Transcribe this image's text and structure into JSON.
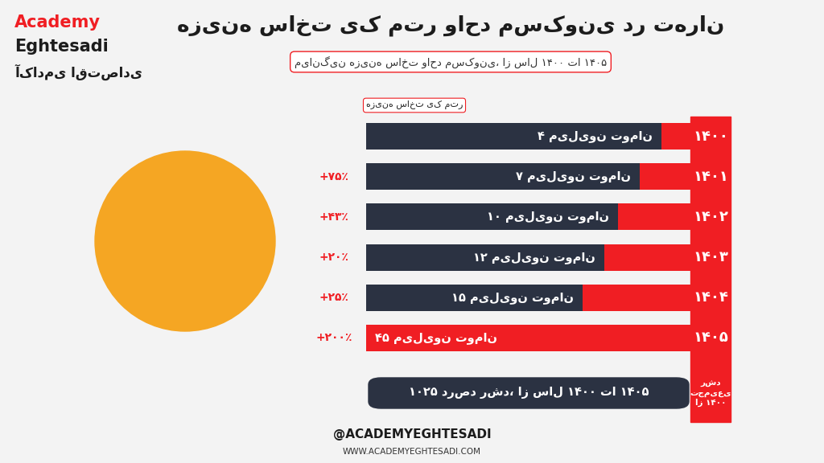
{
  "header": {
    "brand_latin": [
      "Academy",
      "Eghtesadi"
    ],
    "brand_persian": "آکادمی اقتصادی"
  },
  "chart_data": {
    "type": "bar",
    "orientation": "horizontal",
    "title": "هزینه ساخت یک متر واحد مسکونی در تهران",
    "subtitle": "میانگین هزینه ساخت واحد مسکونی، از سال ۱۴۰۰ تا ۱۴۰۵",
    "value_header": "هزینه ساخت یک متر",
    "categories": [
      "۱۴۰۰",
      "۱۴۰۱",
      "۱۴۰۲",
      "۱۴۰۳",
      "۱۴۰۴",
      "۱۴۰۵"
    ],
    "values": [
      4,
      7,
      10,
      12,
      15,
      45
    ],
    "value_labels": [
      "۴ میلیون تومان",
      "۷ میلیون تومان",
      "۱۰ میلیون تومان",
      "۱۲ میلیون تومان",
      "۱۵ میلیون تومان",
      "۴۵ میلیون تومان"
    ],
    "change_labels": [
      null,
      "+۷۵٪",
      "+۴۳٪",
      "+۲۰٪",
      "+۲۵٪",
      "+۲۰۰٪"
    ],
    "xlim": [
      0,
      45
    ],
    "tick_labels": false,
    "data_labels": true,
    "color": "#f01e23",
    "summary": {
      "label": "رشد\nتجمیعی\nاز ۱۴۰۰",
      "text": "۱۰۲۵ درصد رشد، از سال ۱۴۰۰ تا ۱۴۰۵"
    }
  },
  "footer": {
    "handle": "@ACADEMYEGHTESADI",
    "url": "WWW.ACADEMYEGHTESADI.COM"
  }
}
